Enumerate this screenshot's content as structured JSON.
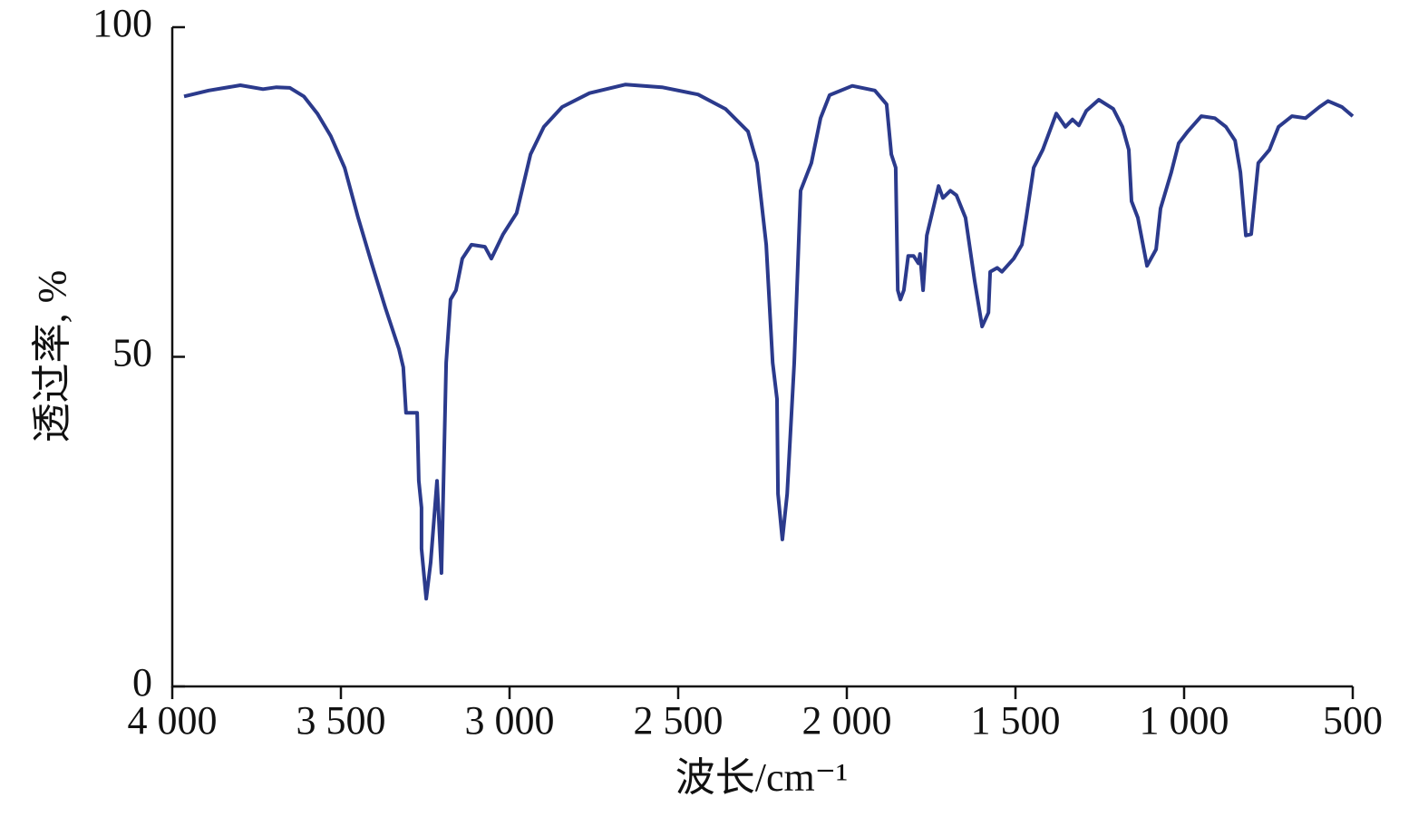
{
  "chart_data": {
    "type": "line",
    "xlabel": "波长/cm⁻¹",
    "ylabel": "透过率, %",
    "color": "#2b3a8c",
    "xlim": [
      4000,
      500
    ],
    "ylim": [
      0,
      100
    ],
    "xticks": [
      {
        "value": 4000,
        "label": "4 000"
      },
      {
        "value": 3500,
        "label": "3 500"
      },
      {
        "value": 3000,
        "label": "3 000"
      },
      {
        "value": 2500,
        "label": "2 500"
      },
      {
        "value": 2000,
        "label": "2 000"
      },
      {
        "value": 1500,
        "label": "1 500"
      },
      {
        "value": 1000,
        "label": "1 000"
      },
      500
    ],
    "yticks": [
      0,
      50,
      100
    ],
    "x": [
      3965,
      3892,
      3798,
      3731,
      3691,
      3651,
      3610,
      3570,
      3530,
      3489,
      3449,
      3409,
      3368,
      3328,
      3315,
      3307,
      3274,
      3269,
      3261,
      3261,
      3247,
      3234,
      3215,
      3202,
      3188,
      3175,
      3159,
      3140,
      3113,
      3073,
      3054,
      3019,
      2979,
      2938,
      2898,
      2844,
      2763,
      2656,
      2548,
      2441,
      2360,
      2293,
      2266,
      2239,
      2220,
      2207,
      2204,
      2191,
      2177,
      2156,
      2137,
      2105,
      2078,
      2051,
      1984,
      1917,
      1882,
      1868,
      1855,
      1849,
      1841,
      1831,
      1818,
      1802,
      1788,
      1783,
      1774,
      1763,
      1728,
      1715,
      1693,
      1675,
      1648,
      1621,
      1599,
      1580,
      1575,
      1554,
      1540,
      1505,
      1481,
      1468,
      1446,
      1419,
      1379,
      1352,
      1331,
      1312,
      1290,
      1253,
      1210,
      1183,
      1164,
      1156,
      1137,
      1110,
      1083,
      1070,
      1038,
      1016,
      989,
      949,
      909,
      876,
      849,
      833,
      817,
      801,
      780,
      747,
      720,
      680,
      640,
      599,
      573,
      532,
      500
    ],
    "values": [
      89.5,
      90.4,
      91.2,
      90.6,
      90.9,
      90.8,
      89.5,
      86.9,
      83.5,
      78.7,
      71.1,
      64.2,
      57.4,
      51.2,
      48.4,
      41.5,
      41.5,
      31.2,
      27.1,
      20.9,
      13.3,
      18.8,
      31.2,
      17.2,
      49.1,
      58.7,
      60.1,
      64.9,
      67.0,
      66.7,
      64.9,
      68.6,
      71.8,
      80.7,
      84.9,
      87.9,
      90.0,
      91.3,
      90.9,
      89.8,
      87.6,
      84.2,
      79.4,
      67.0,
      49.1,
      43.6,
      29.2,
      22.3,
      29.2,
      49.1,
      75.2,
      79.4,
      86.2,
      89.7,
      91.1,
      90.4,
      88.3,
      80.7,
      78.7,
      60.1,
      58.7,
      60.1,
      65.3,
      65.3,
      64.2,
      65.6,
      60.1,
      68.4,
      75.9,
      74.1,
      75.2,
      74.5,
      71.1,
      61.5,
      54.6,
      56.7,
      62.9,
      63.5,
      62.9,
      64.9,
      67.0,
      71.1,
      78.7,
      81.4,
      86.9,
      84.9,
      86.0,
      85.1,
      87.3,
      89.0,
      87.6,
      84.9,
      81.4,
      73.6,
      71.1,
      63.8,
      66.3,
      72.5,
      78.0,
      82.4,
      84.2,
      86.5,
      86.2,
      84.9,
      82.8,
      78.0,
      68.4,
      68.6,
      79.4,
      81.4,
      84.9,
      86.5,
      86.2,
      87.9,
      88.8,
      87.9,
      86.5
    ]
  }
}
